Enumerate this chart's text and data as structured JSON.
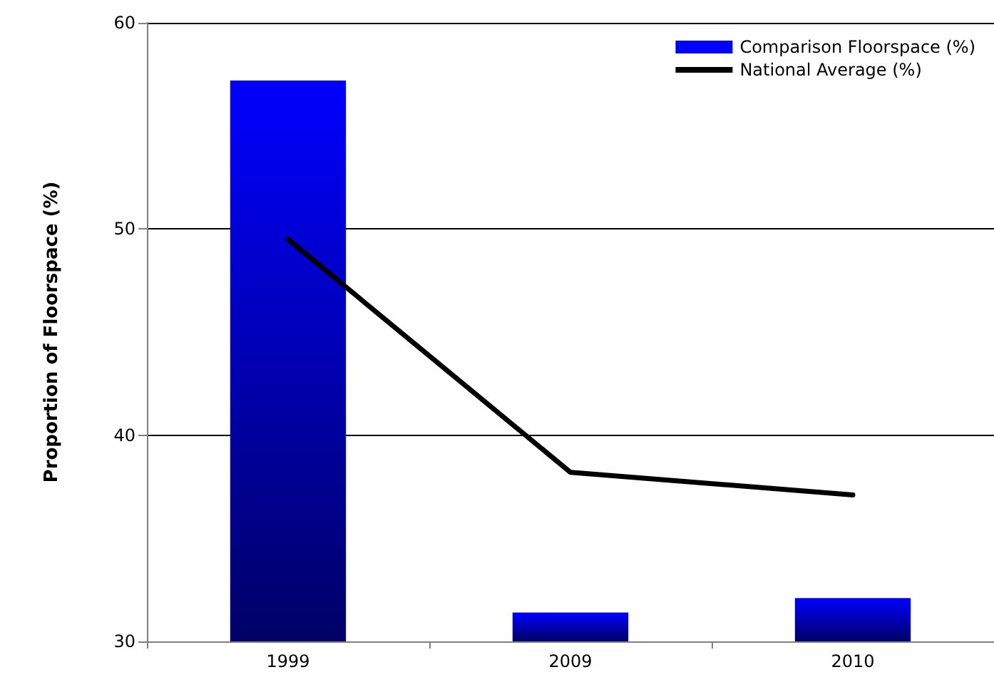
{
  "chart_data": {
    "type": "bar",
    "ylabel": "Proportion of Floorspace (%)",
    "categories": [
      "1999",
      "2009",
      "2010"
    ],
    "series": [
      {
        "name": "Comparison Floorspace (%)",
        "color": "#0000ff",
        "values": [
          57.2,
          31.4,
          32.1
        ]
      },
      {
        "name": "National Average (%)",
        "type": "line",
        "color": "#000000",
        "values": [
          49.5,
          38.2,
          37.1
        ]
      }
    ],
    "ylim": [
      30,
      60
    ],
    "yticks": [
      30,
      40,
      50,
      60
    ],
    "grid": "y",
    "legend": "top right",
    "marker": "none"
  }
}
